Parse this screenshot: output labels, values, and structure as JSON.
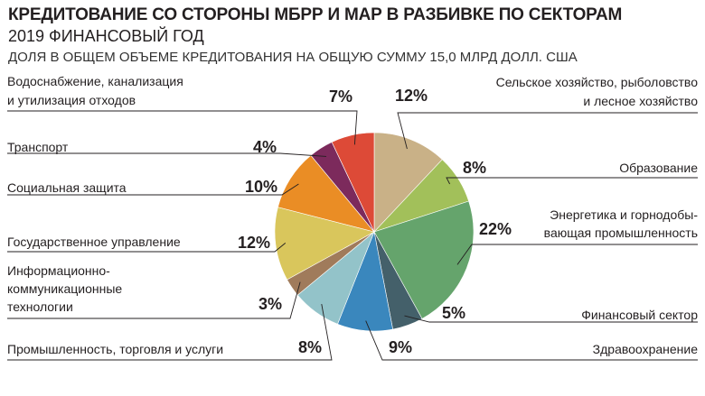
{
  "header": {
    "title": "КРЕДИТОВАНИЕ СО СТОРОНЫ МБРР И МАР В РАЗБИВКЕ ПО СЕКТОРАМ",
    "subtitle": "2019 ФИНАНСОВЫЙ ГОД",
    "note": "ДОЛЯ В ОБЩЕМ ОБЪЕМЕ КРЕДИТОВАНИЯ НА ОБЩУЮ СУММУ 15,0 МЛРД ДОЛЛ. США"
  },
  "chart_data": {
    "type": "pie",
    "title": "КРЕДИТОВАНИЕ СО СТОРОНЫ МБРР И МАР В РАЗБИВКЕ ПО СЕКТОРАМ",
    "unit": "%",
    "slices": [
      {
        "label": [
          "Сельское хозяйство, рыболовство",
          "и лесное хозяйство"
        ],
        "value": 12,
        "value_label": "12%",
        "color": "#c9b187"
      },
      {
        "label": [
          "Образование"
        ],
        "value": 8,
        "value_label": "8%",
        "color": "#a2c05a"
      },
      {
        "label": [
          "Энергетика и горнодобы-",
          "вающая промышленность"
        ],
        "value": 22,
        "value_label": "22%",
        "color": "#65a46c"
      },
      {
        "label": [
          "Финансовый сектор"
        ],
        "value": 5,
        "value_label": "5%",
        "color": "#44606a"
      },
      {
        "label": [
          "Здравоохранение"
        ],
        "value": 9,
        "value_label": "9%",
        "color": "#3a87bd"
      },
      {
        "label": [
          "Промышленность, торговля и услуги"
        ],
        "value": 8,
        "value_label": "8%",
        "color": "#93c3c9"
      },
      {
        "label": [
          "Информационно-",
          "коммуникационные",
          "технологии"
        ],
        "value": 3,
        "value_label": "3%",
        "color": "#a07b5b"
      },
      {
        "label": [
          "Государственное управление"
        ],
        "value": 12,
        "value_label": "12%",
        "color": "#d9c65c"
      },
      {
        "label": [
          "Социальная защита"
        ],
        "value": 10,
        "value_label": "10%",
        "color": "#ea8d25"
      },
      {
        "label": [
          "Транспорт"
        ],
        "value": 4,
        "value_label": "4%",
        "color": "#7c2a5c"
      },
      {
        "label": [
          "Водоснабжение, канализация",
          "и утилизация отходов"
        ],
        "value": 7,
        "value_label": "7%",
        "color": "#dd4a37"
      }
    ]
  }
}
